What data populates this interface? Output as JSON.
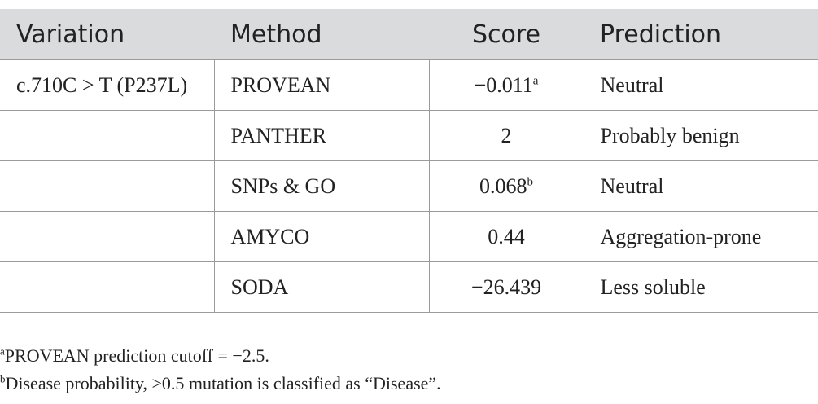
{
  "table": {
    "headers": [
      "Variation",
      "Method",
      "Score",
      "Prediction"
    ],
    "rows": [
      {
        "variation": "c.710C > T (P237L)",
        "method": "PROVEAN",
        "score": "−0.011",
        "score_note": "a",
        "prediction": "Neutral"
      },
      {
        "variation": "",
        "method": "PANTHER",
        "score": "2",
        "score_note": "",
        "prediction": "Probably benign"
      },
      {
        "variation": "",
        "method": "SNPs & GO",
        "score": "0.068",
        "score_note": "b",
        "prediction": "Neutral"
      },
      {
        "variation": "",
        "method": "AMYCO",
        "score": "0.44",
        "score_note": "",
        "prediction": "Aggregation-prone"
      },
      {
        "variation": "",
        "method": "SODA",
        "score": "−26.439",
        "score_note": "",
        "prediction": "Less soluble"
      }
    ]
  },
  "footnotes": [
    {
      "mark": "a",
      "text": "PROVEAN prediction cutoff = −2.5."
    },
    {
      "mark": "b",
      "text": "Disease probability, >0.5 mutation is classified as “Disease”."
    }
  ]
}
